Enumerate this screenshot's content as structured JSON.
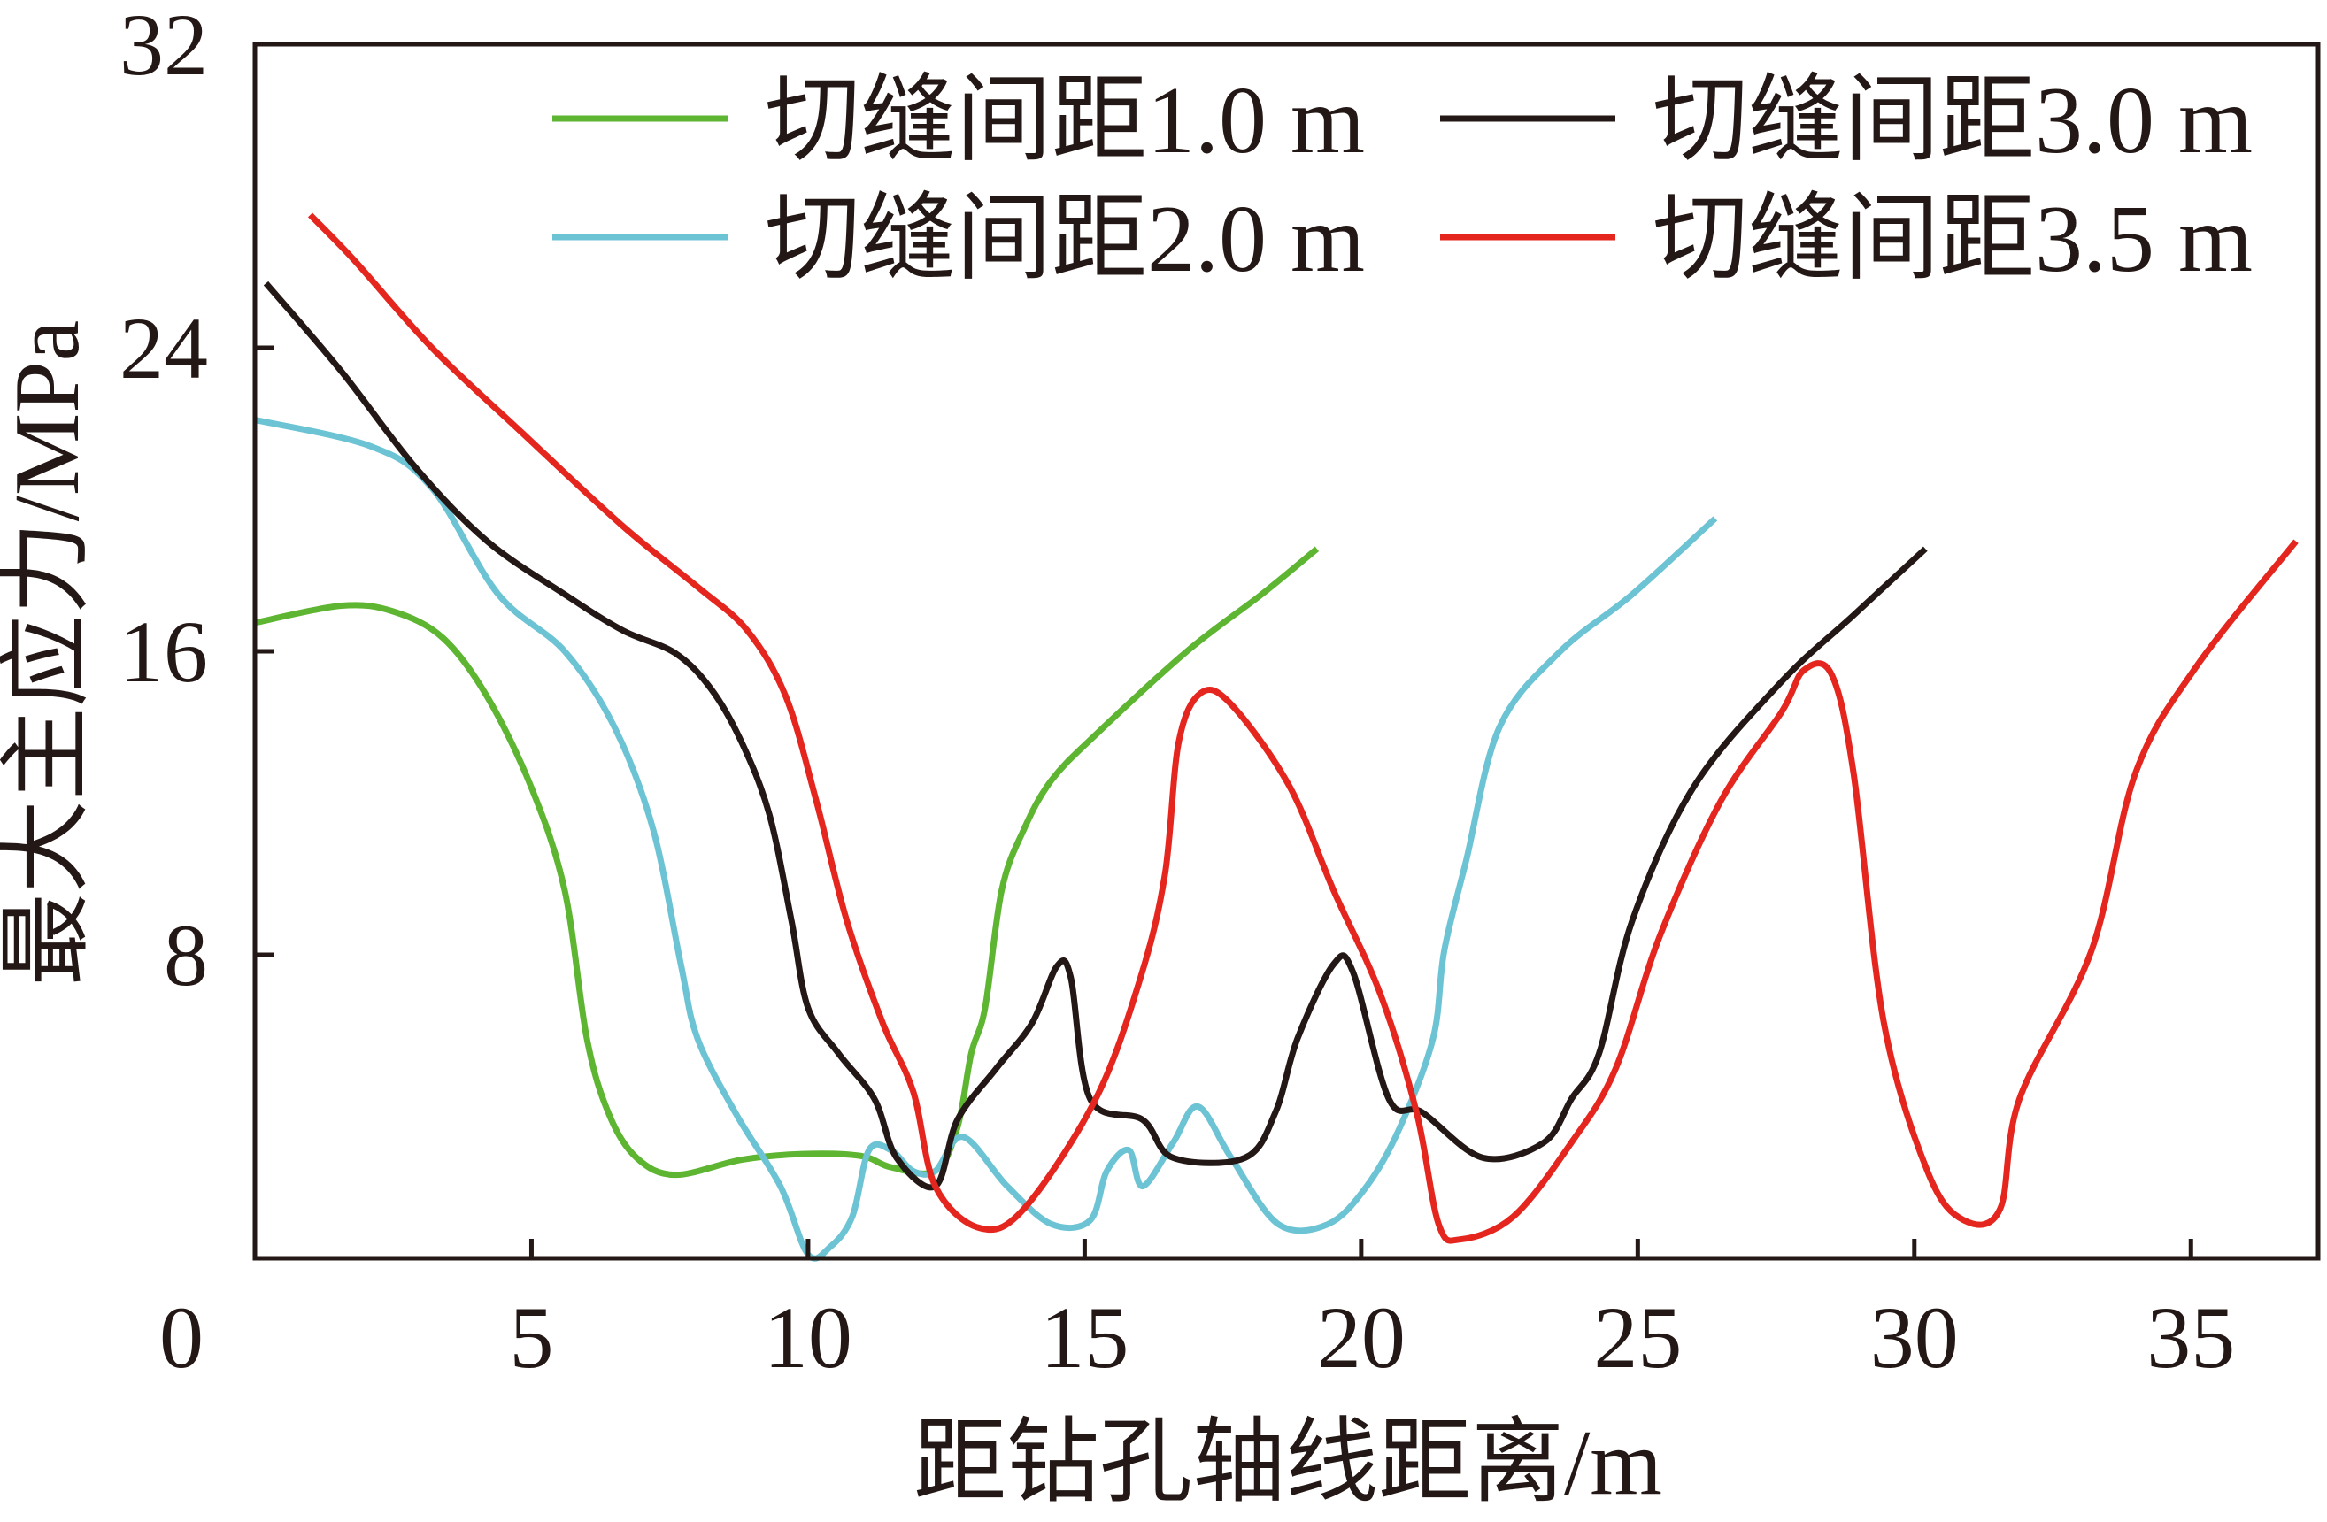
{
  "chart_data": {
    "type": "line",
    "title": "",
    "xlabel": "距钻孔轴线距离/m",
    "ylabel": "最大主应力/MPa",
    "xlim": [
      0,
      37.3
    ],
    "ylim": [
      0,
      32
    ],
    "x_ticks": [
      5,
      10,
      15,
      20,
      25,
      30,
      35
    ],
    "x_tick_labels": [
      "5",
      "10",
      "15",
      "20",
      "25",
      "30",
      "35"
    ],
    "y_ticks": [
      8,
      16,
      24,
      32
    ],
    "y_tick_labels": [
      "8",
      "16",
      "24",
      "32"
    ],
    "origin_label": "0",
    "grid": false,
    "legend_position": "top-right",
    "series": [
      {
        "name": "切缝间距1.0 m",
        "color": "#5db531",
        "x": [
          0,
          1.56,
          2.5,
          3.4,
          4.2,
          5.0,
          5.6,
          6.0,
          6.4,
          6.9,
          7.6,
          8.8,
          9.9,
          10.95,
          11.5,
          12.3,
          12.7,
          12.95,
          13.2,
          13.5,
          13.9,
          14.4,
          15.2,
          16.85,
          18.2,
          19.2
        ],
        "y": [
          16.75,
          17.2,
          17.05,
          16.35,
          14.8,
          12.4,
          9.7,
          5.8,
          3.8,
          2.65,
          2.2,
          2.6,
          2.75,
          2.7,
          2.4,
          2.3,
          3.45,
          5.4,
          6.6,
          9.7,
          11.3,
          12.6,
          13.8,
          16.0,
          17.5,
          18.7
        ]
      },
      {
        "name": "切缝间距2.0 m",
        "color": "#6cc3d4",
        "x": [
          0,
          2.1,
          3.2,
          4.4,
          5.6,
          6.5,
          7.2,
          7.7,
          8.0,
          8.7,
          9.5,
          10.0,
          10.4,
          10.8,
          11.1,
          11.5,
          11.9,
          12.3,
          12.8,
          13.6,
          14.4,
          15.1,
          15.4,
          15.8,
          16.05,
          16.6,
          17.05,
          17.65,
          18.5,
          19.4,
          20.1,
          20.7,
          21.3,
          21.5,
          21.9,
          22.5,
          23.6,
          24.9,
          26.4
        ],
        "y": [
          22.1,
          21.4,
          20.3,
          17.5,
          16.0,
          14.0,
          11.3,
          7.75,
          5.8,
          3.8,
          1.9,
          0.1,
          0.3,
          1.1,
          2.85,
          2.85,
          2.3,
          2.3,
          3.2,
          1.9,
          0.9,
          1.0,
          2.3,
          2.85,
          1.9,
          3.05,
          4.0,
          2.65,
          0.9,
          0.9,
          1.9,
          3.45,
          5.8,
          8.1,
          10.5,
          14.0,
          16.0,
          17.5,
          19.5
        ]
      },
      {
        "name": "切缝间距3.0 m",
        "color": "#231815",
        "x": [
          0.2,
          1.55,
          2.9,
          4.2,
          5.6,
          6.65,
          7.6,
          8.25,
          8.8,
          9.3,
          9.7,
          10.0,
          10.55,
          11.2,
          11.6,
          12.3,
          12.7,
          13.4,
          14.05,
          14.5,
          14.75,
          15.1,
          16.05,
          16.6,
          17.9,
          18.45,
          18.85,
          19.5,
          19.85,
          20.5,
          21.1,
          22.2,
          23.3,
          23.8,
          24.3,
          24.9,
          26.0,
          27.6,
          28.9,
          30.2
        ],
        "y": [
          25.7,
          23.4,
          20.85,
          18.9,
          17.5,
          16.55,
          15.95,
          15.0,
          13.6,
          11.7,
          8.9,
          6.6,
          5.4,
          4.2,
          2.65,
          1.9,
          3.65,
          5.0,
          6.2,
          7.7,
          7.4,
          4.2,
          3.65,
          2.65,
          2.65,
          3.85,
          5.8,
          7.75,
          7.55,
          4.2,
          3.85,
          2.65,
          3.05,
          4.2,
          5.4,
          8.9,
          12.4,
          15.2,
          16.95,
          18.7
        ]
      },
      {
        "name": "切缝间距3.5 m",
        "color": "#e5261f",
        "x": [
          1.0,
          1.8,
          3.2,
          4.8,
          6.65,
          8.0,
          8.9,
          9.6,
          10.15,
          10.7,
          11.35,
          11.9,
          12.3,
          13.1,
          13.9,
          15.2,
          16.0,
          16.45,
          16.7,
          17.1,
          17.65,
          18.7,
          19.5,
          20.35,
          21.0,
          21.4,
          21.8,
          22.75,
          23.8,
          24.6,
          25.4,
          26.5,
          27.6,
          28.0,
          28.5,
          28.9,
          29.45,
          30.25,
          30.9,
          31.55,
          31.9,
          33.2,
          34.0,
          35.1,
          36.9
        ],
        "y": [
          27.5,
          26.3,
          24.0,
          21.8,
          19.3,
          17.7,
          16.55,
          14.8,
          12.05,
          8.9,
          6.2,
          4.4,
          1.9,
          0.8,
          1.3,
          4.2,
          7.35,
          10.1,
          13.6,
          14.9,
          14.6,
          12.45,
          9.7,
          6.95,
          3.85,
          0.9,
          0.5,
          1.1,
          3.05,
          5.0,
          8.5,
          12.05,
          14.4,
          15.5,
          15.4,
          12.8,
          6.2,
          2.25,
          1.0,
          1.3,
          4.2,
          8.1,
          12.8,
          15.6,
          18.9
        ]
      }
    ]
  }
}
